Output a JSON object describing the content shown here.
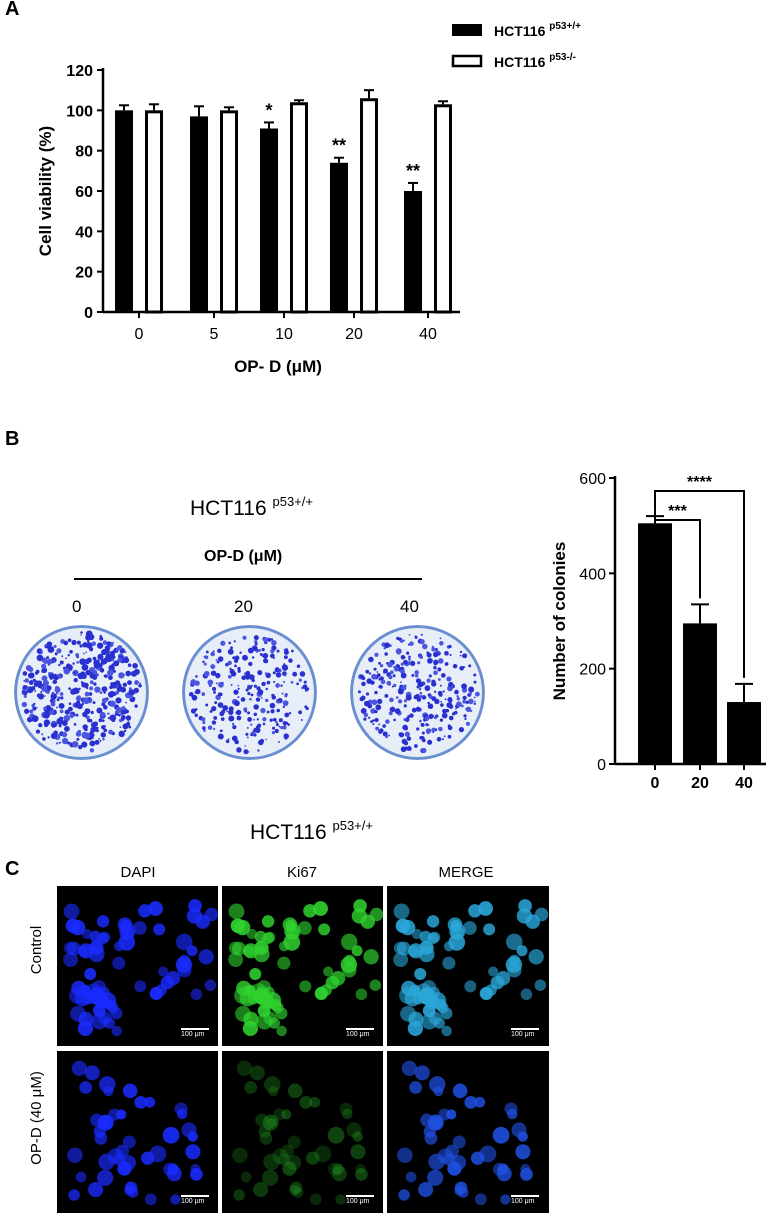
{
  "panels": {
    "a": {
      "letter": "A"
    },
    "b": {
      "letter": "B",
      "title_main": "HCT116",
      "title_sup": "p53+/+",
      "treatment_label": "OP-D (μM)",
      "doses": [
        "0",
        "20",
        "40"
      ]
    },
    "c": {
      "letter": "C",
      "title_main": "HCT116",
      "title_sup": "p53+/+",
      "columns": [
        "DAPI",
        "Ki67",
        "MERGE"
      ],
      "rows": [
        "Control",
        "OP-D (40 μM)"
      ],
      "scale_bar": "100 μm"
    }
  },
  "chart_data": [
    {
      "type": "bar",
      "ylabel": "Cell viability (%)",
      "xlabel": "OP- D (μM)",
      "categories": [
        "0",
        "5",
        "10",
        "20",
        "40"
      ],
      "ylim": [
        0,
        120
      ],
      "yticks": [
        "0",
        "20",
        "40",
        "60",
        "80",
        "100",
        "120"
      ],
      "legend_position": "top-right",
      "series": [
        {
          "name": "HCT116",
          "name_sup": "p53+/+",
          "color": "#000000",
          "fill": "solid",
          "values": [
            100,
            97,
            91,
            74,
            60
          ],
          "errors": [
            2.5,
            5,
            3,
            2.5,
            4
          ]
        },
        {
          "name": "HCT116",
          "name_sup": "p53-/-",
          "color": "#000000",
          "fill": "hollow",
          "values": [
            100,
            100,
            104,
            106,
            103
          ],
          "errors": [
            3,
            1.5,
            1,
            4,
            1.5
          ]
        }
      ],
      "annotations": [
        "",
        "",
        "*",
        "**",
        "**"
      ]
    },
    {
      "type": "bar",
      "ylabel": "Number of colonies",
      "xlabel": "OP-D (μM)",
      "categories": [
        "0",
        "20",
        "40"
      ],
      "ylim": [
        0,
        600
      ],
      "yticks": [
        "0",
        "200",
        "400",
        "600"
      ],
      "values": [
        505,
        295,
        130
      ],
      "errors": [
        15,
        40,
        38
      ],
      "color": "#000000",
      "significance": [
        {
          "from": "0",
          "to": "20",
          "label": "***"
        },
        {
          "from": "0",
          "to": "40",
          "label": "****"
        }
      ]
    }
  ]
}
